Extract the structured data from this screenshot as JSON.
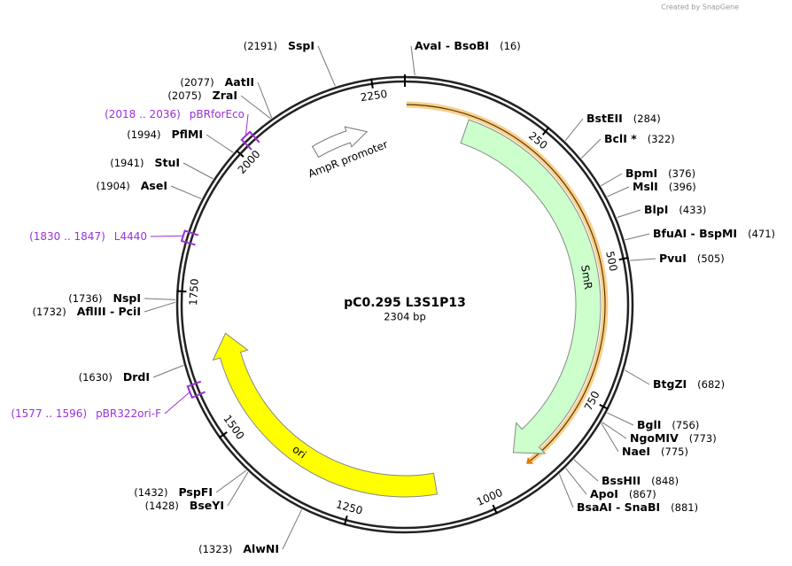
{
  "watermark": "Created by SnapGene",
  "plasmid": {
    "name": "pC0.295 L3S1P13",
    "length": {
      "value": 2304,
      "label": "2304 bp"
    }
  },
  "ticks": [
    250,
    500,
    750,
    1000,
    1250,
    1500,
    1750,
    2000,
    2250
  ],
  "highlight": {
    "start": 3,
    "end": 913,
    "color": "#f5b041"
  },
  "features": [
    {
      "name": "SmR",
      "start": 122,
      "end": 920,
      "color": "#ccffcc"
    },
    {
      "name": "ori",
      "start": 1090,
      "end": 1670,
      "color": "#ffff00"
    },
    {
      "name": "AmpR promoter",
      "start": 2110,
      "end": 2225,
      "color": "#ffffff"
    }
  ],
  "sites": [
    {
      "name": "AvaI - BsoBI",
      "site": {
        "value": 16,
        "label": "(16)"
      }
    },
    {
      "name": "BstEII",
      "site": {
        "value": 284,
        "label": "(284)"
      }
    },
    {
      "name": "BclI *",
      "site": {
        "value": 322,
        "label": "(322)"
      }
    },
    {
      "name": "BpmI",
      "site": {
        "value": 376,
        "label": "(376)"
      }
    },
    {
      "name": "MslI",
      "site": {
        "value": 396,
        "label": "(396)"
      }
    },
    {
      "name": "BlpI",
      "site": {
        "value": 433,
        "label": "(433)"
      }
    },
    {
      "name": "BfuAI - BspMI",
      "site": {
        "value": 471,
        "label": "(471)"
      }
    },
    {
      "name": "PvuI",
      "site": {
        "value": 505,
        "label": "(505)"
      }
    },
    {
      "name": "BtgZI",
      "site": {
        "value": 682,
        "label": "(682)"
      }
    },
    {
      "name": "BglI",
      "site": {
        "value": 756,
        "label": "(756)"
      }
    },
    {
      "name": "NgoMIV",
      "site": {
        "value": 773,
        "label": "(773)"
      }
    },
    {
      "name": "NaeI",
      "site": {
        "value": 775,
        "label": "(775)"
      }
    },
    {
      "name": "BssHII",
      "site": {
        "value": 848,
        "label": "(848)"
      }
    },
    {
      "name": "ApoI",
      "site": {
        "value": 867,
        "label": "(867)"
      }
    },
    {
      "name": "BsaAI - SnaBI",
      "site": {
        "value": 881,
        "label": "(881)"
      }
    },
    {
      "name": "AlwNI",
      "site": {
        "value": 1323,
        "label": "(1323)"
      }
    },
    {
      "name": "BseYI",
      "site": {
        "value": 1428,
        "label": "(1428)"
      }
    },
    {
      "name": "PspFI",
      "site": {
        "value": 1432,
        "label": "(1432)"
      }
    },
    {
      "name": "DrdI",
      "site": {
        "value": 1630,
        "label": "(1630)"
      }
    },
    {
      "name": "AflIII - PciI",
      "site": {
        "value": 1732,
        "label": "(1732)"
      }
    },
    {
      "name": "NspI",
      "site": {
        "value": 1736,
        "label": "(1736)"
      }
    },
    {
      "name": "AseI",
      "site": {
        "value": 1904,
        "label": "(1904)"
      }
    },
    {
      "name": "StuI",
      "site": {
        "value": 1941,
        "label": "(1941)"
      }
    },
    {
      "name": "PflMI",
      "site": {
        "value": 1994,
        "label": "(1994)"
      }
    },
    {
      "name": "ZraI",
      "site": {
        "value": 2075,
        "label": "(2075)"
      }
    },
    {
      "name": "AatII",
      "site": {
        "value": 2077,
        "label": "(2077)"
      }
    },
    {
      "name": "SspI",
      "site": {
        "value": 2191,
        "label": "(2191)"
      }
    }
  ],
  "primers": [
    {
      "name": "pBRforEco",
      "range": {
        "value": [
          2018,
          2036
        ],
        "label": "(2018 .. 2036)"
      }
    },
    {
      "name": "L4440",
      "range": {
        "value": [
          1830,
          1847
        ],
        "label": "(1830 .. 1847)"
      }
    },
    {
      "name": "pBR322ori-F",
      "range": {
        "value": [
          1577,
          1596
        ],
        "label": "(1577 .. 1596)"
      }
    }
  ]
}
